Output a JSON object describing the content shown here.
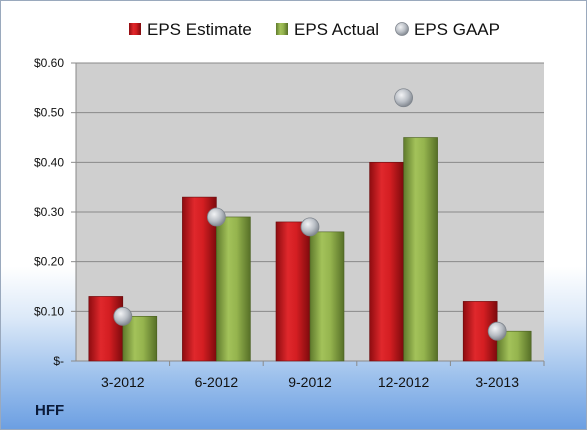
{
  "ticker": "HFF",
  "colors": {
    "estimate": "#c8171c",
    "actual": "#8aa848",
    "gaap": "#b4b9c0",
    "plot_bg": "#cfcfcf"
  },
  "chart_data": {
    "type": "bar",
    "categories": [
      "3-2012",
      "6-2012",
      "9-2012",
      "12-2012",
      "3-2013"
    ],
    "series": [
      {
        "name": "EPS Estimate",
        "type": "bar",
        "values": [
          0.13,
          0.33,
          0.28,
          0.4,
          0.12
        ]
      },
      {
        "name": "EPS Actual",
        "type": "bar",
        "values": [
          0.09,
          0.29,
          0.26,
          0.45,
          0.06
        ]
      },
      {
        "name": "EPS GAAP",
        "type": "scatter",
        "values": [
          0.09,
          0.29,
          0.27,
          0.53,
          0.06
        ]
      }
    ],
    "ylim": [
      0,
      0.6
    ],
    "yticks": [
      0,
      0.1,
      0.2,
      0.3,
      0.4,
      0.5,
      0.6
    ],
    "ytick_labels": [
      "$-",
      "$0.10",
      "$0.20",
      "$0.30",
      "$0.40",
      "$0.50",
      "$0.60"
    ],
    "legend_position": "top",
    "grid": true
  }
}
